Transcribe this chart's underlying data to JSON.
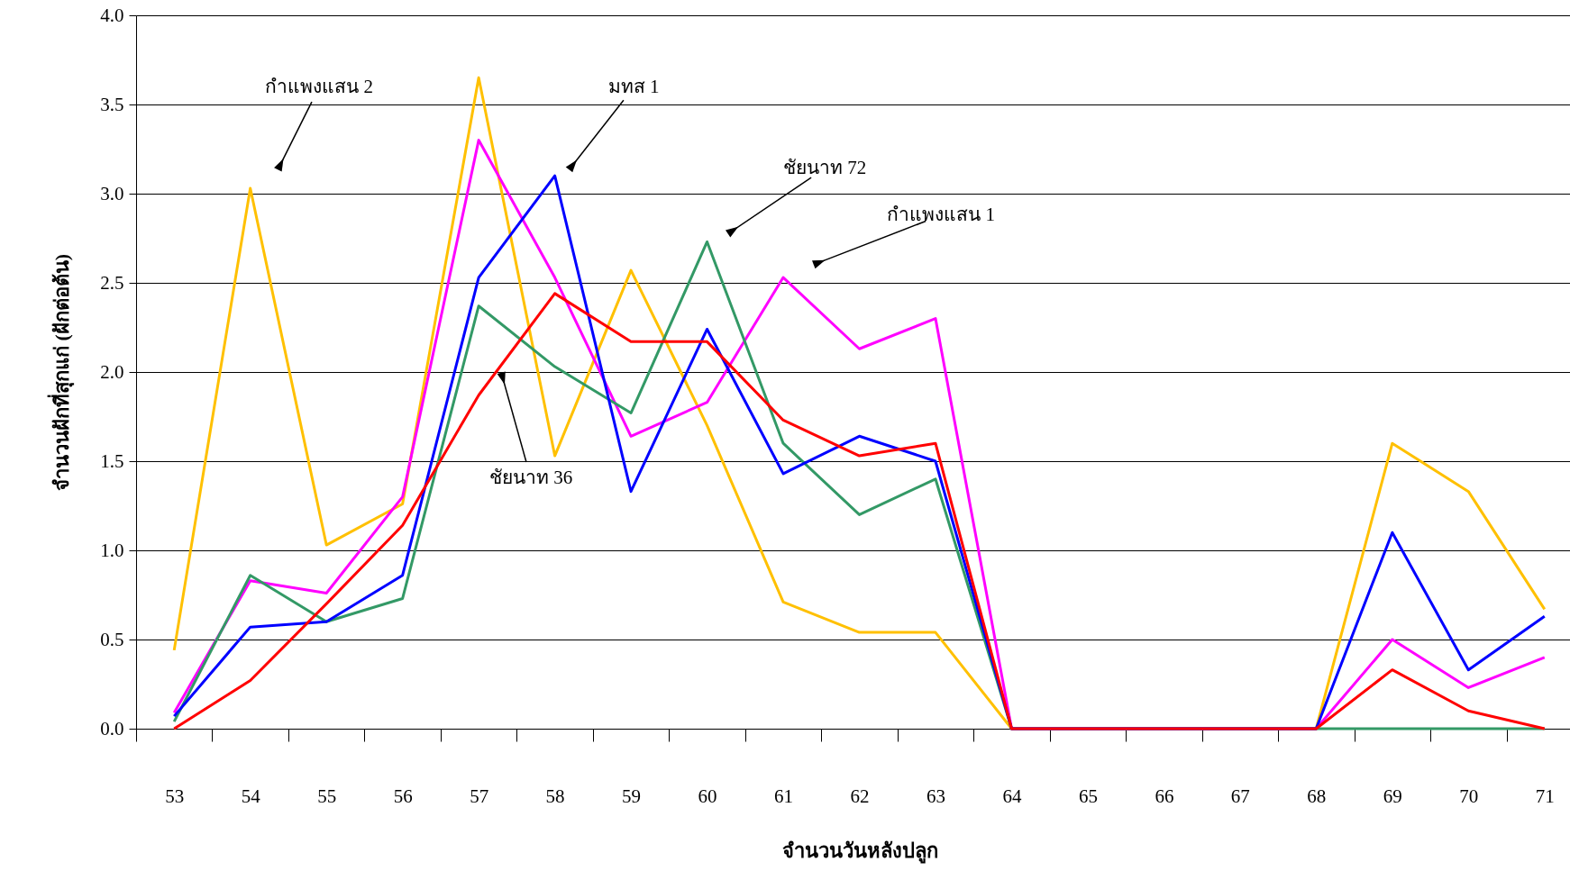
{
  "chart_data": {
    "type": "line",
    "xlabel": "จำนวนวันหลังปลูก",
    "ylabel": "จำนวนฝักที่สุกแก่ (ฝักต่อต้น)",
    "categories": [
      "53",
      "54",
      "55",
      "56",
      "57",
      "58",
      "59",
      "60",
      "61",
      "62",
      "63",
      "64",
      "65",
      "66",
      "67",
      "68",
      "69",
      "70",
      "71"
    ],
    "series": [
      {
        "color": "#ffc000",
        "values": [
          0.44,
          3.03,
          1.03,
          1.26,
          3.65,
          1.53,
          2.57,
          1.7,
          0.71,
          0.54,
          0.54,
          0,
          0,
          0,
          0,
          0,
          1.6,
          1.33,
          0.67
        ]
      },
      {
        "color": "#ff00ff",
        "values": [
          0.09,
          0.83,
          0.76,
          1.3,
          3.3,
          2.53,
          1.64,
          1.83,
          2.53,
          2.13,
          2.3,
          0,
          0,
          0,
          0,
          0,
          0.5,
          0.23,
          0.4
        ]
      },
      {
        "color": "#339966",
        "values": [
          0.04,
          0.86,
          0.6,
          0.73,
          2.37,
          2.03,
          1.77,
          2.73,
          1.6,
          1.2,
          1.4,
          0,
          0,
          0,
          0,
          0,
          0,
          0,
          0
        ]
      },
      {
        "color": "#0000ff",
        "values": [
          0.07,
          0.57,
          0.6,
          0.86,
          2.53,
          3.1,
          1.33,
          2.24,
          1.43,
          1.64,
          1.5,
          0,
          0,
          0,
          0,
          0,
          1.1,
          0.33,
          0.63
        ]
      },
      {
        "color": "#ff0000",
        "values": [
          0,
          0.27,
          0.7,
          1.14,
          1.87,
          2.44,
          2.17,
          2.17,
          1.73,
          1.53,
          1.6,
          0,
          0,
          0,
          0,
          0,
          0.33,
          0.1,
          0
        ]
      }
    ],
    "ylim": [
      0,
      4
    ],
    "yticks": [
      {
        "value": 0,
        "label": "0.0"
      },
      {
        "value": 0.5,
        "label": "0.5"
      },
      {
        "value": 1,
        "label": "1.0"
      },
      {
        "value": 1.5,
        "label": "1.5"
      },
      {
        "value": 2,
        "label": "2.0"
      },
      {
        "value": 2.5,
        "label": "2.5"
      },
      {
        "value": 3,
        "label": "3.0"
      },
      {
        "value": 3.5,
        "label": "3.5"
      },
      {
        "value": 4,
        "label": "4.0"
      }
    ],
    "grid": "y",
    "marker": "none",
    "line_style": "solid",
    "annotations": [
      "กำแพงแสน 2",
      "มทส 1",
      "ชัยนาท 72",
      "กำแพงแสน 1",
      "ชัยนาท 36"
    ]
  }
}
